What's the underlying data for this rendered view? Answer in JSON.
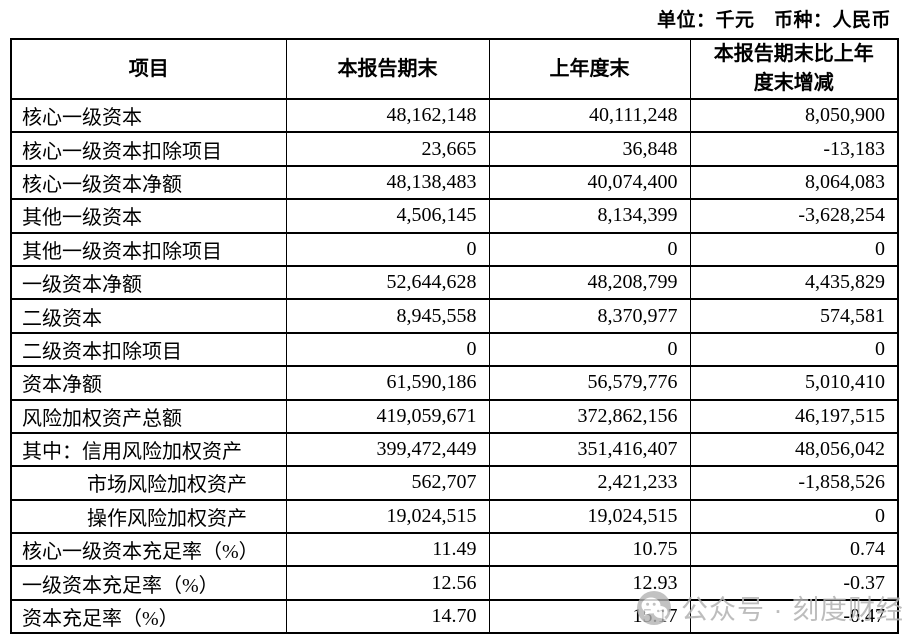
{
  "unit_note": "单位：千元　币种：人民币",
  "table": {
    "headers": {
      "item": "项目",
      "current": "本报告期末",
      "prior": "上年度末",
      "change": "本报告期末比上年度末增减"
    },
    "rows": [
      {
        "item": "核心一级资本",
        "current": "48,162,148",
        "prior": "40,111,248",
        "change": "8,050,900",
        "indent": false
      },
      {
        "item": "核心一级资本扣除项目",
        "current": "23,665",
        "prior": "36,848",
        "change": "-13,183",
        "indent": false
      },
      {
        "item": "核心一级资本净额",
        "current": "48,138,483",
        "prior": "40,074,400",
        "change": "8,064,083",
        "indent": false
      },
      {
        "item": "其他一级资本",
        "current": "4,506,145",
        "prior": "8,134,399",
        "change": "-3,628,254",
        "indent": false
      },
      {
        "item": "其他一级资本扣除项目",
        "current": "0",
        "prior": "0",
        "change": "0",
        "indent": false
      },
      {
        "item": "一级资本净额",
        "current": "52,644,628",
        "prior": "48,208,799",
        "change": "4,435,829",
        "indent": false
      },
      {
        "item": "二级资本",
        "current": "8,945,558",
        "prior": "8,370,977",
        "change": "574,581",
        "indent": false
      },
      {
        "item": "二级资本扣除项目",
        "current": "0",
        "prior": "0",
        "change": "0",
        "indent": false
      },
      {
        "item": "资本净额",
        "current": "61,590,186",
        "prior": "56,579,776",
        "change": "5,010,410",
        "indent": false
      },
      {
        "item": "风险加权资产总额",
        "current": "419,059,671",
        "prior": "372,862,156",
        "change": "46,197,515",
        "indent": false
      },
      {
        "item": "其中：信用风险加权资产",
        "current": "399,472,449",
        "prior": "351,416,407",
        "change": "48,056,042",
        "indent": false
      },
      {
        "item": "市场风险加权资产",
        "current": "562,707",
        "prior": "2,421,233",
        "change": "-1,858,526",
        "indent": true
      },
      {
        "item": "操作风险加权资产",
        "current": "19,024,515",
        "prior": "19,024,515",
        "change": "0",
        "indent": true
      },
      {
        "item": "核心一级资本充足率（%）",
        "current": "11.49",
        "prior": "10.75",
        "change": "0.74",
        "indent": false
      },
      {
        "item": "一级资本充足率（%）",
        "current": "12.56",
        "prior": "12.93",
        "change": "-0.37",
        "indent": false
      },
      {
        "item": "资本充足率（%）",
        "current": "14.70",
        "prior": "15.17",
        "change": "-0.47",
        "indent": false
      }
    ]
  },
  "watermark": {
    "text": "公众号 · 刻度财经",
    "icon": "wechat-icon"
  },
  "colors": {
    "border": "#000000",
    "text": "#000000",
    "watermark_gray": "#b1b1b1"
  }
}
